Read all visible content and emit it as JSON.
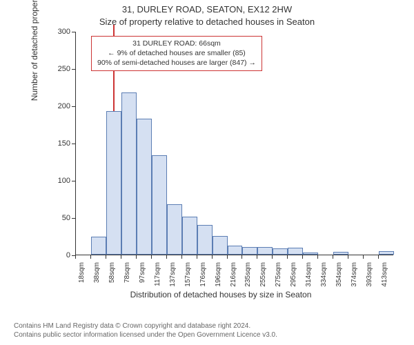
{
  "title": "31, DURLEY ROAD, SEATON, EX12 2HW",
  "subtitle": "Size of property relative to detached houses in Seaton",
  "chart": {
    "type": "histogram",
    "y_axis": {
      "label": "Number of detached properties",
      "min": 0,
      "max": 300,
      "ticks": [
        0,
        50,
        100,
        150,
        200,
        250,
        300
      ],
      "label_fontsize": 12,
      "tick_fontsize": 11
    },
    "x_axis": {
      "label": "Distribution of detached houses by size in Seaton",
      "categories": [
        "18sqm",
        "38sqm",
        "58sqm",
        "78sqm",
        "97sqm",
        "117sqm",
        "137sqm",
        "157sqm",
        "176sqm",
        "196sqm",
        "216sqm",
        "235sqm",
        "255sqm",
        "275sqm",
        "295sqm",
        "314sqm",
        "334sqm",
        "354sqm",
        "374sqm",
        "393sqm",
        "413sqm"
      ],
      "label_fontsize": 12,
      "tick_fontsize": 10
    },
    "bars": {
      "values": [
        0,
        24,
        193,
        218,
        182,
        133,
        68,
        51,
        40,
        25,
        12,
        10,
        10,
        8,
        9,
        3,
        0,
        4,
        0,
        0,
        5
      ],
      "fill_color": "#d5e0f2",
      "border_color": "#5b7db3"
    },
    "highlight": {
      "position_category_index": 2,
      "position_fraction_within": 0.45,
      "line_color": "#cc3333"
    },
    "callout": {
      "lines": [
        "31 DURLEY ROAD: 66sqm",
        "← 9% of detached houses are smaller (85)",
        "90% of semi-detached houses are larger (847) →"
      ],
      "border_color": "#cc3333"
    },
    "background_color": "#ffffff",
    "axis_color": "#333333"
  },
  "footer": {
    "line1": "Contains HM Land Registry data © Crown copyright and database right 2024.",
    "line2": "Contains public sector information licensed under the Open Government Licence v3.0."
  }
}
